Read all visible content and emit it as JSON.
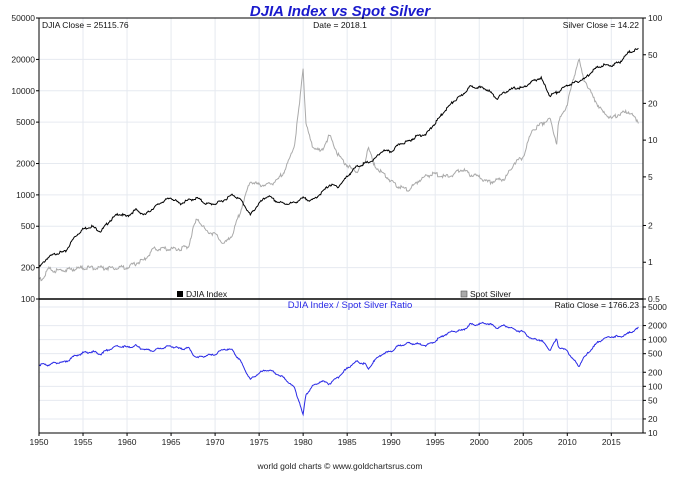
{
  "chart_data": [
    {
      "type": "line",
      "title": "DJIA Index vs Spot Silver",
      "readouts": {
        "djia_close": "DJIA Close = 25115.76",
        "date": "Date = 2018.1",
        "silver_close": "Silver Close = 14.22"
      },
      "left_axis": {
        "scale": "log",
        "range": [
          100,
          50000
        ],
        "ticks": [
          "50000",
          "20000",
          "10000",
          "5000",
          "2000",
          "1000",
          "500",
          "200",
          "100"
        ]
      },
      "right_axis": {
        "scale": "log",
        "range": [
          0.5,
          100
        ],
        "ticks": [
          "100",
          "50",
          "20",
          "10",
          "5",
          "2",
          "1",
          "0.5"
        ]
      },
      "legend": [
        "DJIA Index",
        "Spot Silver"
      ],
      "series": [
        {
          "name": "DJIA Index",
          "axis": "left",
          "color": "#000000",
          "x": [
            1950,
            1951,
            1952,
            1953,
            1954,
            1955,
            1956,
            1957,
            1958,
            1959,
            1960,
            1961,
            1962,
            1963,
            1964,
            1965,
            1966,
            1967,
            1968,
            1969,
            1970,
            1971,
            1972,
            1973,
            1974,
            1975,
            1976,
            1977,
            1978,
            1979,
            1980,
            1981,
            1982,
            1983,
            1984,
            1985,
            1986,
            1987,
            1988,
            1989,
            1990,
            1991,
            1992,
            1993,
            1994,
            1995,
            1996,
            1997,
            1998,
            1999,
            2000,
            2001,
            2002,
            2003,
            2004,
            2005,
            2006,
            2007,
            2008,
            2009,
            2010,
            2011,
            2012,
            2013,
            2014,
            2015,
            2016,
            2017,
            2018.1
          ],
          "values": [
            200,
            250,
            275,
            285,
            390,
            470,
            500,
            445,
            560,
            660,
            620,
            720,
            640,
            750,
            860,
            940,
            820,
            890,
            930,
            820,
            820,
            890,
            1010,
            880,
            640,
            830,
            980,
            860,
            820,
            840,
            930,
            880,
            1030,
            1250,
            1200,
            1500,
            1850,
            2000,
            2150,
            2650,
            2600,
            3100,
            3280,
            3700,
            3850,
            4900,
            6300,
            7800,
            9000,
            11000,
            10800,
            10200,
            8400,
            9800,
            10600,
            10700,
            12200,
            13400,
            9000,
            9800,
            11300,
            12100,
            13100,
            16000,
            17600,
            17500,
            19000,
            23500,
            25115.76
          ]
        },
        {
          "name": "Spot Silver",
          "axis": "right",
          "color": "#aaaaaa",
          "x": [
            1950,
            1950.5,
            1951,
            1952,
            1955,
            1958,
            1960,
            1962,
            1963,
            1965,
            1966,
            1967,
            1967.5,
            1968,
            1969,
            1970,
            1971,
            1972,
            1973,
            1974,
            1975,
            1976,
            1977,
            1978,
            1979,
            1979.6,
            1980,
            1980.3,
            1981,
            1982,
            1983,
            1984,
            1985,
            1986,
            1987,
            1987.4,
            1988,
            1989,
            1990,
            1991,
            1992,
            1993,
            1994,
            1995,
            1996,
            1997,
            1998,
            1999,
            2000,
            2001,
            2002,
            2003,
            2004,
            2005,
            2006,
            2007,
            2008,
            2008.8,
            2009,
            2010,
            2011.3,
            2011.8,
            2012,
            2013,
            2014,
            2015,
            2016,
            2017,
            2018.1
          ],
          "values": [
            0.72,
            0.75,
            0.88,
            0.85,
            0.9,
            0.9,
            0.91,
            1.05,
            1.28,
            1.29,
            1.29,
            1.35,
            1.9,
            2.3,
            1.8,
            1.7,
            1.4,
            1.7,
            2.8,
            4.6,
            4.3,
            4.3,
            4.6,
            5.8,
            9,
            20,
            40,
            14,
            9,
            8,
            11,
            7.5,
            6.2,
            5.5,
            6.5,
            9,
            6.3,
            5.4,
            4.6,
            4.1,
            3.9,
            4.6,
            5.1,
            5.3,
            5.0,
            5.2,
            5.8,
            5.2,
            5.0,
            4.5,
            4.7,
            4.9,
            6.5,
            7.3,
            12,
            13.5,
            15,
            9.5,
            14,
            20,
            47,
            32,
            31,
            22,
            17,
            15,
            16.5,
            17,
            14.22
          ]
        }
      ]
    },
    {
      "type": "line",
      "title": "DJIA Index / Spot Silver Ratio",
      "readout": "Ratio Close = 1766.23",
      "y_axis": {
        "scale": "log",
        "range": [
          10,
          5000
        ],
        "ticks": [
          "5000",
          "2000",
          "1000",
          "500",
          "200",
          "100",
          "50",
          "20",
          "10"
        ]
      },
      "series": [
        {
          "name": "DJIA Index / Spot Silver Ratio",
          "color": "#2a2ae6",
          "derived_from": [
            "DJIA Index",
            "Spot Silver"
          ],
          "last_value": 1766.23
        }
      ]
    }
  ],
  "x_axis": {
    "range": [
      1950,
      2018.6
    ],
    "ticks": [
      "1950",
      "1955",
      "1960",
      "1965",
      "1970",
      "1975",
      "1980",
      "1985",
      "1990",
      "1995",
      "2000",
      "2005",
      "2010",
      "2015"
    ]
  },
  "footer": "world gold charts © www.goldchartsrus.com",
  "colors": {
    "title": "#1a1acc",
    "ratio": "#2a2ae6",
    "grid": "#e6eaf0"
  }
}
